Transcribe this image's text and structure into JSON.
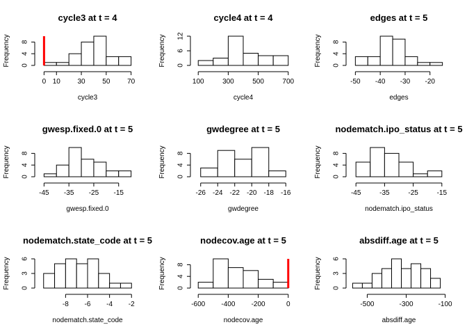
{
  "chart_data": [
    {
      "type": "histogram",
      "title": "cycle3 at t = 4",
      "xlabel": "cycle3",
      "ylabel": "Frequency",
      "bins": [
        [
          0,
          10,
          1
        ],
        [
          10,
          20,
          1
        ],
        [
          20,
          30,
          4
        ],
        [
          30,
          40,
          8
        ],
        [
          40,
          50,
          10
        ],
        [
          50,
          60,
          3
        ],
        [
          60,
          70,
          3
        ]
      ],
      "xticks": [
        0,
        10,
        30,
        50,
        70
      ],
      "yticks": [
        0,
        4,
        8
      ],
      "xlim": [
        -3,
        73
      ],
      "ylim": [
        0,
        10
      ],
      "ref_line": 0,
      "ref_color": "#ff0000"
    },
    {
      "type": "histogram",
      "title": "cycle4 at t = 4",
      "xlabel": "cycle4",
      "ylabel": "Frequency",
      "bins": [
        [
          100,
          200,
          2
        ],
        [
          200,
          300,
          3
        ],
        [
          300,
          400,
          12
        ],
        [
          400,
          500,
          5
        ],
        [
          500,
          600,
          4
        ],
        [
          600,
          700,
          4
        ]
      ],
      "xticks": [
        100,
        300,
        500,
        700
      ],
      "yticks": [
        0,
        6,
        12
      ],
      "xlim": [
        85,
        715
      ],
      "ylim": [
        0,
        12
      ]
    },
    {
      "type": "histogram",
      "title": "edges at t = 5",
      "xlabel": "edges",
      "ylabel": "Frequency",
      "bins": [
        [
          -50,
          -45,
          3
        ],
        [
          -45,
          -40,
          3
        ],
        [
          -40,
          -35,
          10
        ],
        [
          -35,
          -30,
          9
        ],
        [
          -30,
          -25,
          3
        ],
        [
          -25,
          -20,
          1
        ],
        [
          -20,
          -15,
          1
        ]
      ],
      "xticks": [
        -50,
        -40,
        -30,
        -20
      ],
      "yticks": [
        0,
        4,
        8
      ],
      "xlim": [
        -51.5,
        -13.5
      ],
      "ylim": [
        0,
        10
      ]
    },
    {
      "type": "histogram",
      "title": "gwesp.fixed.0 at t = 5",
      "xlabel": "gwesp.fixed.0",
      "ylabel": "Frequency",
      "bins": [
        [
          -45,
          -40,
          1
        ],
        [
          -40,
          -35,
          4
        ],
        [
          -35,
          -30,
          10
        ],
        [
          -30,
          -25,
          6
        ],
        [
          -25,
          -20,
          5
        ],
        [
          -20,
          -15,
          2
        ],
        [
          -15,
          -10,
          2
        ]
      ],
      "xticks": [
        -45,
        -35,
        -25,
        -15
      ],
      "yticks": [
        0,
        4,
        8
      ],
      "xlim": [
        -46.5,
        -8.5
      ],
      "ylim": [
        0,
        10
      ]
    },
    {
      "type": "histogram",
      "title": "gwdegree at t = 5",
      "xlabel": "gwdegree",
      "ylabel": "Frequency",
      "bins": [
        [
          -26,
          -24,
          3
        ],
        [
          -24,
          -22,
          9
        ],
        [
          -22,
          -20,
          6
        ],
        [
          -20,
          -18,
          10
        ],
        [
          -18,
          -16,
          2
        ]
      ],
      "xticks": [
        -26,
        -24,
        -22,
        -20,
        -18,
        -16
      ],
      "yticks": [
        0,
        4,
        8
      ],
      "xlim": [
        -26.55,
        -15.45
      ],
      "ylim": [
        0,
        10
      ]
    },
    {
      "type": "histogram",
      "title": "nodematch.ipo_status at t = 5",
      "xlabel": "nodematch.ipo_status",
      "ylabel": "Frequency",
      "bins": [
        [
          -45,
          -40,
          5
        ],
        [
          -40,
          -35,
          10
        ],
        [
          -35,
          -30,
          8
        ],
        [
          -30,
          -25,
          5
        ],
        [
          -25,
          -20,
          1
        ],
        [
          -20,
          -15,
          2
        ]
      ],
      "xticks": [
        -45,
        -35,
        -25,
        -15
      ],
      "yticks": [
        0,
        4,
        8
      ],
      "xlim": [
        -46.5,
        -13.5
      ],
      "ylim": [
        0,
        10
      ]
    },
    {
      "type": "histogram",
      "title": "nodematch.state_code at t = 5",
      "xlabel": "nodematch.state_code",
      "ylabel": "Frequency",
      "bins": [
        [
          -10,
          -9,
          3
        ],
        [
          -9,
          -8,
          5
        ],
        [
          -8,
          -7,
          6
        ],
        [
          -7,
          -6,
          5
        ],
        [
          -6,
          -5,
          6
        ],
        [
          -5,
          -4,
          3
        ],
        [
          -4,
          -3,
          1
        ],
        [
          -3,
          -2,
          1
        ]
      ],
      "xticks": [
        -8,
        -6,
        -4,
        -2
      ],
      "yticks": [
        0,
        3,
        6
      ],
      "xlim": [
        -10.3,
        -1.7
      ],
      "ylim": [
        0,
        6
      ]
    },
    {
      "type": "histogram",
      "title": "nodecov.age at t = 5",
      "xlabel": "nodecov.age",
      "ylabel": "Frequency",
      "bins": [
        [
          -600,
          -500,
          2
        ],
        [
          -500,
          -400,
          10
        ],
        [
          -400,
          -300,
          7
        ],
        [
          -300,
          -200,
          6
        ],
        [
          -200,
          -100,
          3
        ],
        [
          -100,
          0,
          2
        ]
      ],
      "xticks": [
        -600,
        -400,
        -200,
        0
      ],
      "yticks": [
        0,
        4,
        8
      ],
      "xlim": [
        -615,
        15
      ],
      "ylim": [
        0,
        10
      ],
      "ref_line": 0,
      "ref_color": "#ff0000"
    },
    {
      "type": "histogram",
      "title": "absdiff.age at t = 5",
      "xlabel": "absdiff.age",
      "ylabel": "Frequency",
      "bins": [
        [
          -575,
          -525,
          1
        ],
        [
          -525,
          -475,
          1
        ],
        [
          -475,
          -425,
          3
        ],
        [
          -425,
          -375,
          4
        ],
        [
          -375,
          -325,
          6
        ],
        [
          -325,
          -275,
          4
        ],
        [
          -275,
          -225,
          5
        ],
        [
          -225,
          -175,
          4
        ],
        [
          -175,
          -125,
          2
        ]
      ],
      "xticks": [
        -500,
        -300,
        -100
      ],
      "yticks": [
        0,
        3,
        6
      ],
      "xlim": [
        -580,
        -95
      ],
      "ylim": [
        0,
        6
      ]
    }
  ]
}
